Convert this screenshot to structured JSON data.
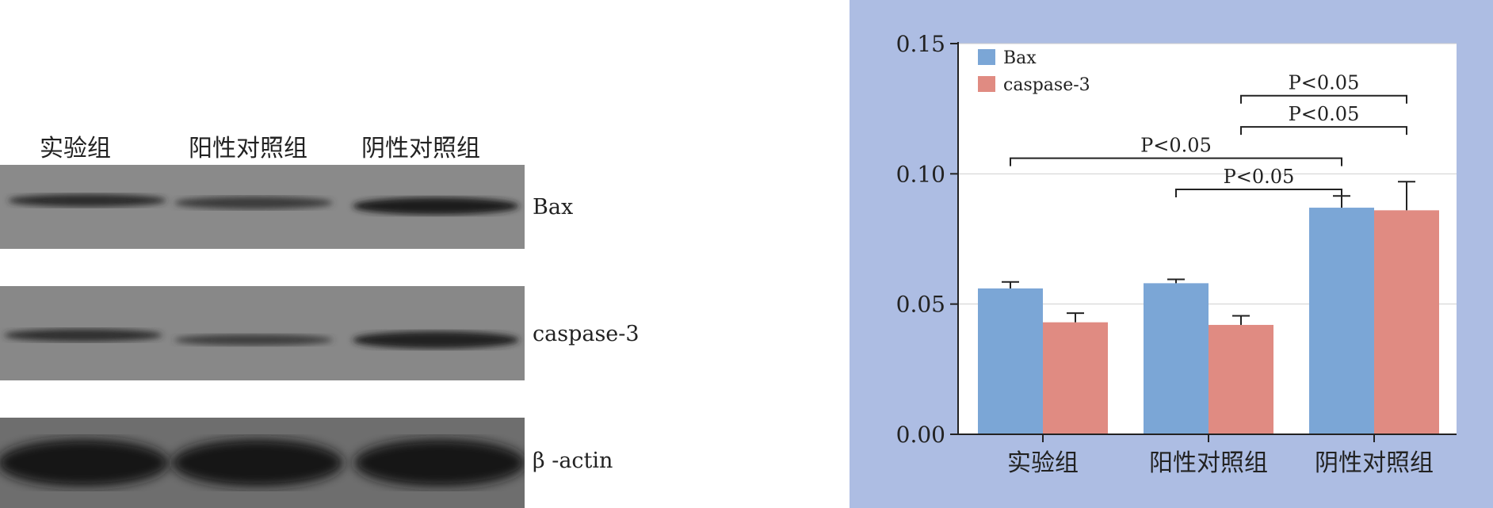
{
  "blot": {
    "lane_labels": [
      "实验组",
      "阳性对照组",
      "阴性对照组"
    ],
    "band_labels": [
      "Bax",
      "caspase-3",
      "β -actin"
    ]
  },
  "chart_data": {
    "type": "bar",
    "categories": [
      "实验组",
      "阳性对照组",
      "阴性对照组"
    ],
    "series": [
      {
        "name": "Bax",
        "values": [
          0.056,
          0.058,
          0.087
        ],
        "errors": [
          0.0025,
          0.0015,
          0.0045
        ]
      },
      {
        "name": "caspase-3",
        "values": [
          0.043,
          0.042,
          0.086
        ],
        "errors": [
          0.0035,
          0.0035,
          0.011
        ]
      }
    ],
    "ylim": [
      0,
      0.15
    ],
    "yticks": [
      "0.00",
      "0.05",
      "0.10",
      "0.15"
    ],
    "grid": true,
    "legend": "top-left",
    "colors": {
      "Bax": "#7ba6d6",
      "caspase-3": "#e08b82",
      "background": "#adbde3",
      "plot": "#ffffff"
    },
    "significance": [
      {
        "from_group": 1,
        "from_series": 1,
        "to_group": 2,
        "to_series": 1,
        "value": 0.13,
        "label": "P<0.05"
      },
      {
        "from_group": 1,
        "from_series": 1,
        "to_group": 2,
        "to_series": 1,
        "value": 0.118,
        "label": "P<0.05"
      },
      {
        "from_group": 0,
        "from_series": 0,
        "to_group": 2,
        "to_series": 0,
        "value": 0.106,
        "label": "P<0.05"
      },
      {
        "from_group": 1,
        "from_series": 0,
        "to_group": 2,
        "to_series": 0,
        "value": 0.094,
        "label": "P<0.05"
      }
    ]
  }
}
